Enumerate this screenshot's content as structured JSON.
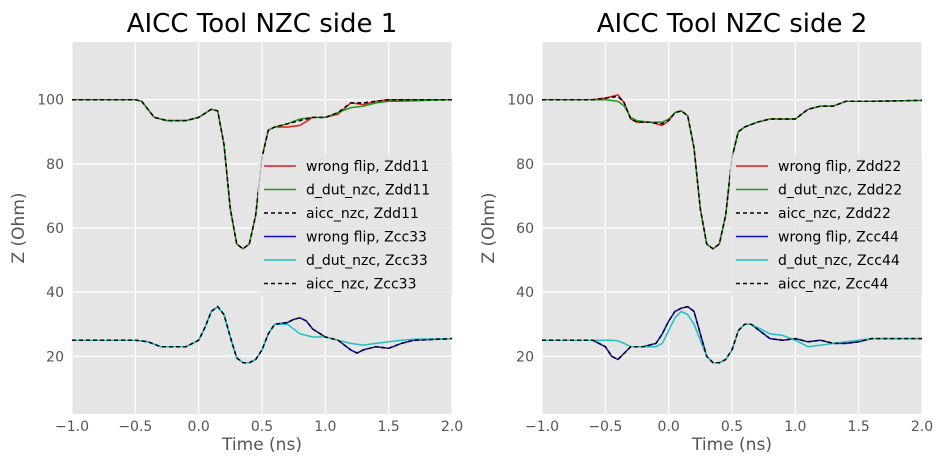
{
  "colors": {
    "background": "#e5e5e5",
    "grid": "#ffffff",
    "wrong_flip_diff": "#e41a1c",
    "d_dut_nzc_diff": "#1a9a1a",
    "aicc_nzc": "#000000",
    "wrong_flip_comm": "#1010d0",
    "d_dut_nzc_comm": "#20c0c0"
  },
  "chart_data": [
    {
      "type": "line",
      "title": "AICC Tool NZC side 1",
      "xlabel": "Time (ns)",
      "ylabel": "Z (Ohm)",
      "xlim": [
        -1.0,
        2.0
      ],
      "ylim": [
        2,
        118
      ],
      "xticks": [
        "−1.0",
        "−0.5",
        "0.0",
        "0.5",
        "1.0",
        "1.5",
        "2.0"
      ],
      "xtick_values": [
        -1.0,
        -0.5,
        0.0,
        0.5,
        1.0,
        1.5,
        2.0
      ],
      "yticks": [
        "20",
        "40",
        "60",
        "80",
        "100"
      ],
      "ytick_values": [
        20,
        40,
        60,
        80,
        100
      ],
      "grid": true,
      "legend_position": "right",
      "series": [
        {
          "name": "wrong flip, Zdd11",
          "color": "#e41a1c",
          "dash": false,
          "x": [
            -1.0,
            -0.5,
            -0.45,
            -0.35,
            -0.25,
            -0.1,
            0.0,
            0.1,
            0.15,
            0.2,
            0.25,
            0.3,
            0.35,
            0.4,
            0.45,
            0.5,
            0.55,
            0.6,
            0.7,
            0.8,
            0.9,
            1.0,
            1.1,
            1.2,
            1.3,
            1.4,
            1.5,
            1.6,
            1.8,
            2.0
          ],
          "y": [
            100,
            100,
            99.5,
            94.5,
            93.5,
            93.5,
            94.5,
            97,
            96.5,
            86,
            66,
            55,
            53.5,
            55,
            64,
            82,
            90.5,
            91.5,
            91.5,
            92,
            94.5,
            94.5,
            95.5,
            99,
            98.5,
            99.5,
            100,
            100,
            100,
            100
          ]
        },
        {
          "name": "d_dut_nzc, Zdd11",
          "color": "#1a9a1a",
          "dash": false,
          "x": [
            -1.0,
            -0.5,
            -0.45,
            -0.35,
            -0.25,
            -0.1,
            0.0,
            0.1,
            0.15,
            0.2,
            0.25,
            0.3,
            0.35,
            0.4,
            0.45,
            0.5,
            0.55,
            0.6,
            0.7,
            0.8,
            0.9,
            1.0,
            1.1,
            1.2,
            1.3,
            1.4,
            1.5,
            1.6,
            1.8,
            2.0
          ],
          "y": [
            100,
            100,
            99.5,
            94.5,
            93.5,
            93.5,
            94.5,
            97,
            96.5,
            86,
            66,
            55,
            53.5,
            55,
            64,
            82,
            90.5,
            91.5,
            92.5,
            94,
            94.5,
            94.5,
            96,
            97.5,
            98,
            99,
            99.5,
            99.5,
            99.8,
            100
          ]
        },
        {
          "name": "aicc_nzc, Zdd11",
          "color": "#000000",
          "dash": true,
          "x": [
            -1.0,
            -0.5,
            -0.45,
            -0.35,
            -0.25,
            -0.1,
            0.0,
            0.1,
            0.15,
            0.2,
            0.25,
            0.3,
            0.35,
            0.4,
            0.45,
            0.5,
            0.55,
            0.6,
            0.7,
            0.8,
            0.9,
            1.0,
            1.1,
            1.2,
            1.3,
            1.4,
            1.5,
            1.6,
            1.8,
            2.0
          ],
          "y": [
            100,
            100,
            99.5,
            94.5,
            93.5,
            93.5,
            94.5,
            97,
            96.5,
            86,
            66,
            55,
            53.5,
            55,
            64,
            82,
            90.5,
            91.5,
            92.5,
            93.5,
            94.5,
            94.5,
            96,
            99,
            99,
            99.5,
            100,
            100,
            100,
            100
          ]
        },
        {
          "name": "wrong flip, Zcc33",
          "color": "#1010d0",
          "dash": false,
          "x": [
            -1.0,
            -0.5,
            -0.4,
            -0.3,
            -0.1,
            0.0,
            0.05,
            0.1,
            0.15,
            0.2,
            0.25,
            0.3,
            0.35,
            0.4,
            0.45,
            0.5,
            0.55,
            0.6,
            0.7,
            0.75,
            0.8,
            0.85,
            0.9,
            1.0,
            1.1,
            1.2,
            1.25,
            1.3,
            1.4,
            1.5,
            1.6,
            1.7,
            2.0
          ],
          "y": [
            25,
            25,
            24.5,
            23,
            23,
            25,
            29,
            34,
            35.5,
            33,
            26,
            19.5,
            18,
            18,
            19,
            22,
            27,
            30,
            30.5,
            31.5,
            32,
            31,
            28.5,
            26,
            25,
            22,
            21,
            22,
            23,
            22.5,
            24,
            25,
            25.5
          ]
        },
        {
          "name": "d_dut_nzc, Zcc33",
          "color": "#20c0c0",
          "dash": false,
          "x": [
            -1.0,
            -0.5,
            -0.4,
            -0.3,
            -0.1,
            0.0,
            0.05,
            0.1,
            0.15,
            0.2,
            0.25,
            0.3,
            0.35,
            0.4,
            0.45,
            0.5,
            0.55,
            0.6,
            0.7,
            0.8,
            0.9,
            1.0,
            1.1,
            1.2,
            1.3,
            1.4,
            1.5,
            1.6,
            1.7,
            2.0
          ],
          "y": [
            25,
            25,
            24.5,
            23,
            23,
            25,
            29,
            34,
            35.5,
            33,
            26,
            19.5,
            18,
            18,
            19,
            22,
            27,
            30,
            30,
            27,
            26,
            26,
            25,
            24,
            23.5,
            24,
            24.5,
            25,
            25.3,
            25.5
          ]
        },
        {
          "name": "aicc_nzc, Zcc33",
          "color": "#000000",
          "dash": true,
          "x": [
            -1.0,
            -0.5,
            -0.4,
            -0.3,
            -0.1,
            0.0,
            0.05,
            0.1,
            0.15,
            0.2,
            0.25,
            0.3,
            0.35,
            0.4,
            0.45,
            0.5,
            0.55,
            0.6,
            0.7,
            0.75,
            0.8,
            0.85,
            0.9,
            1.0,
            1.1,
            1.2,
            1.25,
            1.3,
            1.4,
            1.5,
            1.6,
            1.7,
            2.0
          ],
          "y": [
            25,
            25,
            24.5,
            23,
            23,
            25,
            29,
            34,
            35.5,
            33,
            26,
            19.5,
            18,
            18,
            19,
            22,
            27,
            30,
            30.5,
            31.5,
            32,
            31,
            28.5,
            26,
            25,
            22,
            21,
            22,
            23,
            22.5,
            24,
            25,
            25.5
          ]
        }
      ]
    },
    {
      "type": "line",
      "title": "AICC Tool NZC side 2",
      "xlabel": "Time (ns)",
      "ylabel": "Z (Ohm)",
      "xlim": [
        -1.0,
        2.0
      ],
      "ylim": [
        2,
        118
      ],
      "xticks": [
        "−1.0",
        "−0.5",
        "0.0",
        "0.5",
        "1.0",
        "1.5",
        "2.0"
      ],
      "xtick_values": [
        -1.0,
        -0.5,
        0.0,
        0.5,
        1.0,
        1.5,
        2.0
      ],
      "yticks": [
        "20",
        "40",
        "60",
        "80",
        "100"
      ],
      "ytick_values": [
        20,
        40,
        60,
        80,
        100
      ],
      "grid": true,
      "legend_position": "right",
      "series": [
        {
          "name": "wrong flip, Zdd22",
          "color": "#e41a1c",
          "dash": false,
          "x": [
            -1.0,
            -0.6,
            -0.5,
            -0.4,
            -0.35,
            -0.3,
            -0.25,
            -0.15,
            -0.05,
            0.0,
            0.05,
            0.1,
            0.15,
            0.2,
            0.25,
            0.3,
            0.35,
            0.4,
            0.45,
            0.5,
            0.55,
            0.6,
            0.7,
            0.8,
            0.9,
            1.0,
            1.1,
            1.2,
            1.3,
            1.4,
            1.6,
            2.0
          ],
          "y": [
            100,
            100,
            100.5,
            101.5,
            99,
            94,
            93,
            93,
            92,
            93.5,
            96,
            96.5,
            95,
            85,
            66,
            55,
            53.5,
            55,
            64,
            82,
            90,
            91.5,
            93,
            94,
            94,
            94,
            97,
            98,
            98,
            99.5,
            99.5,
            99.8
          ]
        },
        {
          "name": "d_dut_nzc, Zdd22",
          "color": "#1a9a1a",
          "dash": false,
          "x": [
            -1.0,
            -0.6,
            -0.5,
            -0.4,
            -0.35,
            -0.3,
            -0.25,
            -0.15,
            -0.05,
            0.0,
            0.05,
            0.1,
            0.15,
            0.2,
            0.25,
            0.3,
            0.35,
            0.4,
            0.45,
            0.5,
            0.55,
            0.6,
            0.7,
            0.8,
            0.9,
            1.0,
            1.1,
            1.2,
            1.3,
            1.4,
            1.6,
            2.0
          ],
          "y": [
            100,
            100,
            100,
            99.5,
            98,
            94.5,
            93.5,
            93,
            93,
            94,
            96,
            96.5,
            95,
            85,
            66,
            55,
            53.5,
            55,
            64,
            82,
            90,
            91.5,
            93,
            94,
            94,
            94,
            97,
            98,
            98,
            99.5,
            99.5,
            99.8
          ]
        },
        {
          "name": "aicc_nzc, Zdd22",
          "color": "#000000",
          "dash": true,
          "x": [
            -1.0,
            -0.6,
            -0.5,
            -0.4,
            -0.35,
            -0.3,
            -0.25,
            -0.15,
            -0.05,
            0.0,
            0.05,
            0.1,
            0.15,
            0.2,
            0.25,
            0.3,
            0.35,
            0.4,
            0.45,
            0.5,
            0.55,
            0.6,
            0.7,
            0.8,
            0.9,
            1.0,
            1.1,
            1.2,
            1.3,
            1.4,
            1.6,
            2.0
          ],
          "y": [
            100,
            100,
            100.5,
            101,
            99,
            94,
            93,
            93,
            92.5,
            93.5,
            96,
            96.5,
            95,
            85,
            66,
            55,
            53.5,
            55,
            64,
            82,
            90,
            91.5,
            93,
            94,
            94,
            94,
            97,
            98,
            98,
            99.5,
            99.5,
            99.8
          ]
        },
        {
          "name": "wrong flip, Zcc44",
          "color": "#1010d0",
          "dash": false,
          "x": [
            -1.0,
            -0.6,
            -0.5,
            -0.45,
            -0.4,
            -0.35,
            -0.3,
            -0.2,
            -0.1,
            -0.05,
            0.0,
            0.05,
            0.1,
            0.15,
            0.2,
            0.25,
            0.3,
            0.35,
            0.4,
            0.45,
            0.5,
            0.55,
            0.6,
            0.65,
            0.7,
            0.8,
            0.9,
            1.0,
            1.1,
            1.2,
            1.3,
            1.4,
            1.5,
            1.6,
            2.0
          ],
          "y": [
            25,
            25,
            23,
            20,
            19,
            21,
            23,
            23,
            24,
            27,
            31,
            34,
            35,
            35.5,
            34,
            27,
            20,
            18,
            18,
            19,
            22,
            28,
            30,
            30,
            28.5,
            25.5,
            25,
            25.5,
            24.5,
            25,
            24,
            24,
            24.5,
            25.5,
            25.5
          ]
        },
        {
          "name": "d_dut_nzc, Zcc44",
          "color": "#20c0c0",
          "dash": false,
          "x": [
            -1.0,
            -0.6,
            -0.5,
            -0.45,
            -0.4,
            -0.35,
            -0.3,
            -0.2,
            -0.1,
            -0.05,
            0.0,
            0.05,
            0.1,
            0.15,
            0.2,
            0.25,
            0.3,
            0.35,
            0.4,
            0.45,
            0.5,
            0.55,
            0.6,
            0.65,
            0.7,
            0.8,
            0.9,
            1.0,
            1.1,
            1.2,
            1.3,
            1.4,
            1.5,
            1.6,
            2.0
          ],
          "y": [
            25,
            25,
            25,
            25,
            24.8,
            24,
            23,
            23,
            23,
            24,
            28,
            32,
            34,
            33,
            30,
            25,
            20,
            18,
            18,
            19,
            22,
            28,
            30,
            30,
            29,
            27,
            26.5,
            25,
            23,
            23.5,
            24,
            24.5,
            25,
            25.5,
            25.5
          ]
        },
        {
          "name": "aicc_nzc, Zcc44",
          "color": "#000000",
          "dash": true,
          "x": [
            -1.0,
            -0.6,
            -0.5,
            -0.45,
            -0.4,
            -0.35,
            -0.3,
            -0.2,
            -0.1,
            -0.05,
            0.0,
            0.05,
            0.1,
            0.15,
            0.2,
            0.25,
            0.3,
            0.35,
            0.4,
            0.45,
            0.5,
            0.55,
            0.6,
            0.65,
            0.7,
            0.8,
            0.9,
            1.0,
            1.1,
            1.2,
            1.3,
            1.4,
            1.5,
            1.6,
            2.0
          ],
          "y": [
            25,
            25,
            23,
            20,
            19,
            21,
            23,
            23,
            24,
            27,
            31,
            34,
            35,
            35.5,
            34,
            27,
            20,
            18,
            18,
            19,
            22,
            28,
            30,
            30,
            28.5,
            25.5,
            25,
            25.5,
            24.5,
            25,
            24,
            24,
            24.5,
            25.5,
            25.5
          ]
        }
      ]
    }
  ]
}
